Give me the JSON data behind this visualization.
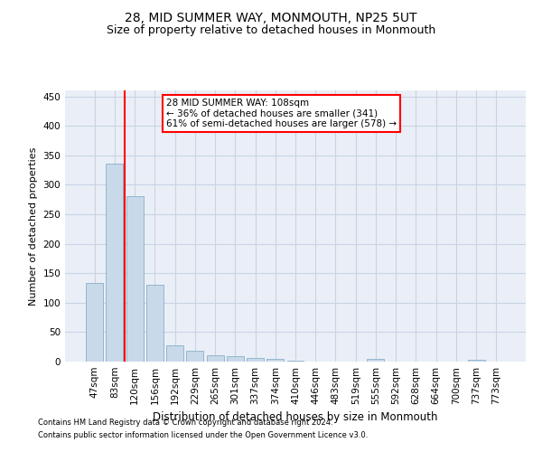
{
  "title": "28, MID SUMMER WAY, MONMOUTH, NP25 5UT",
  "subtitle": "Size of property relative to detached houses in Monmouth",
  "xlabel": "Distribution of detached houses by size in Monmouth",
  "ylabel": "Number of detached properties",
  "categories": [
    "47sqm",
    "83sqm",
    "120sqm",
    "156sqm",
    "192sqm",
    "229sqm",
    "265sqm",
    "301sqm",
    "337sqm",
    "374sqm",
    "410sqm",
    "446sqm",
    "483sqm",
    "519sqm",
    "555sqm",
    "592sqm",
    "628sqm",
    "664sqm",
    "700sqm",
    "737sqm",
    "773sqm"
  ],
  "values": [
    133,
    336,
    281,
    131,
    27,
    18,
    11,
    9,
    6,
    4,
    1,
    0,
    0,
    0,
    4,
    0,
    0,
    0,
    0,
    3,
    0
  ],
  "bar_color": "#c8d9ea",
  "bar_edge_color": "#8aafc8",
  "grid_color": "#c8d4e4",
  "background_color": "#eaeff7",
  "vline_x": 1.5,
  "vline_color": "red",
  "annotation_text": "28 MID SUMMER WAY: 108sqm\n← 36% of detached houses are smaller (341)\n61% of semi-detached houses are larger (578) →",
  "annotation_box_color": "white",
  "annotation_box_edge": "red",
  "ylim": [
    0,
    460
  ],
  "yticks": [
    0,
    50,
    100,
    150,
    200,
    250,
    300,
    350,
    400,
    450
  ],
  "footer1": "Contains HM Land Registry data © Crown copyright and database right 2024.",
  "footer2": "Contains public sector information licensed under the Open Government Licence v3.0.",
  "title_fontsize": 10,
  "subtitle_fontsize": 9,
  "tick_fontsize": 7.5,
  "ylabel_fontsize": 8,
  "xlabel_fontsize": 8.5,
  "annotation_fontsize": 7.5,
  "footer_fontsize": 6
}
